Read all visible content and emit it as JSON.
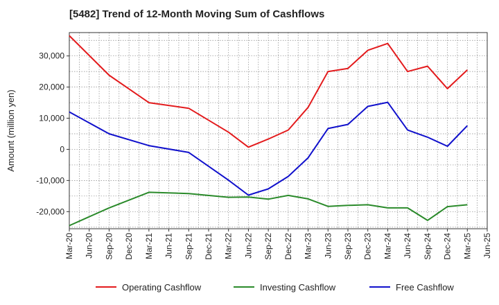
{
  "chart_data": {
    "type": "line",
    "title": "[5482]  Trend of 12-Month Moving Sum of Cashflows",
    "xlabel": "",
    "ylabel": "Amount (million yen)",
    "categories": [
      "Mar-20",
      "Jun-20",
      "Sep-20",
      "Dec-20",
      "Mar-21",
      "Jun-21",
      "Sep-21",
      "Dec-21",
      "Mar-22",
      "Jun-22",
      "Sep-22",
      "Dec-22",
      "Mar-23",
      "Jun-23",
      "Sep-23",
      "Dec-23",
      "Mar-24",
      "Jun-24",
      "Sep-24",
      "Dec-24",
      "Mar-25",
      "Jun-25"
    ],
    "y_ticks": [
      -20000,
      -10000,
      0,
      10000,
      20000,
      30000
    ],
    "y_tick_labels": [
      "-20,000",
      "-10,000",
      "0",
      "10,000",
      "20,000",
      "30,000"
    ],
    "ylim": [
      -25500,
      37500
    ],
    "grid": true,
    "legend_position": "bottom",
    "series": [
      {
        "name": "Operating Cashflow",
        "color": "#e31a1c",
        "values": [
          36500,
          null,
          23800,
          null,
          15000,
          null,
          13200,
          null,
          5500,
          700,
          3300,
          6200,
          13500,
          25000,
          26000,
          31800,
          34000,
          25000,
          26700,
          19500,
          25500,
          null
        ]
      },
      {
        "name": "Investing Cashflow",
        "color": "#2a8a2a",
        "values": [
          -24500,
          null,
          -18800,
          null,
          -13800,
          null,
          -14200,
          null,
          -15400,
          -15300,
          -16000,
          -14800,
          -15900,
          -18300,
          -18000,
          -17800,
          -18800,
          -18800,
          -22800,
          -18400,
          -17800,
          null
        ]
      },
      {
        "name": "Free Cashflow",
        "color": "#1010cc",
        "values": [
          12000,
          null,
          5000,
          null,
          1200,
          null,
          -1000,
          null,
          -9900,
          -14700,
          -12700,
          -8700,
          -2700,
          6700,
          8000,
          13800,
          15100,
          6200,
          3900,
          1000,
          7600,
          null
        ]
      }
    ]
  }
}
